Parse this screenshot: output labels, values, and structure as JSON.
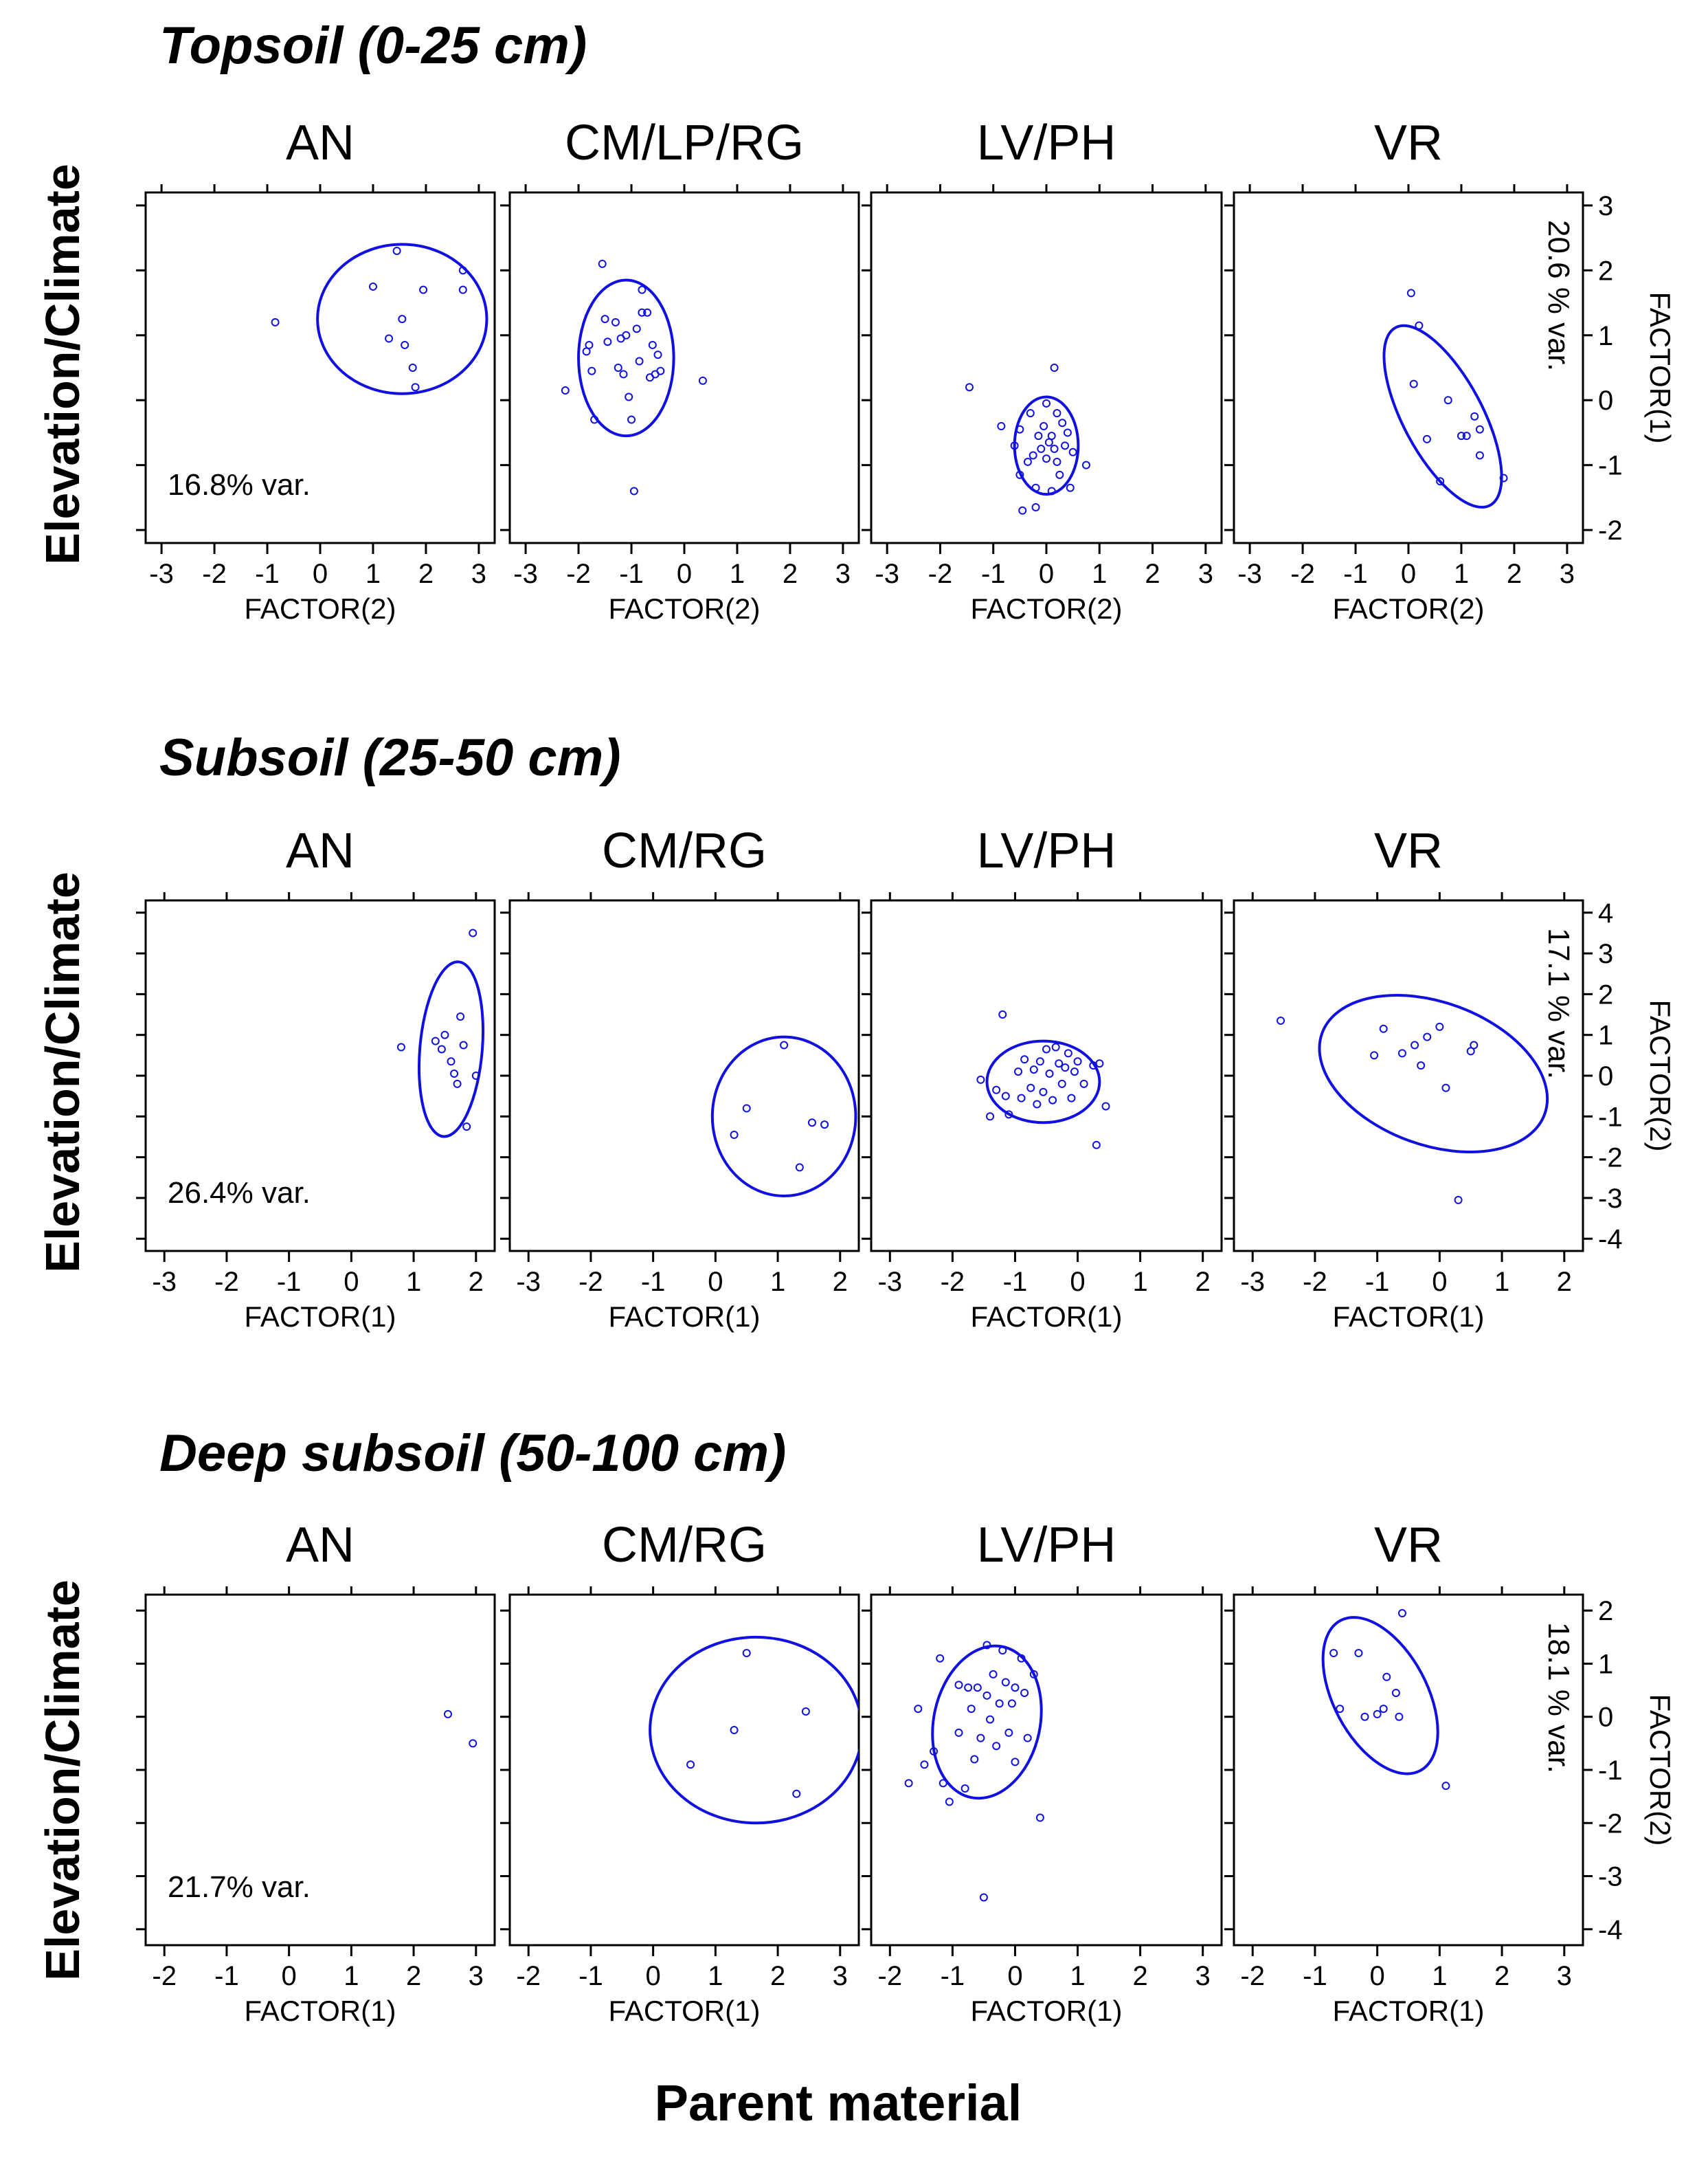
{
  "figure": {
    "xlabel": "Parent material",
    "ylabel": "Elevation/Climate"
  },
  "chart_data": [
    {
      "type": "scatter",
      "section": "Topsoil (0-25 cm)",
      "xlabel": "FACTOR(2)",
      "ylabel": "FACTOR(1)",
      "xlim": [
        -3.3,
        3.3
      ],
      "ylim": [
        -2.2,
        3.2
      ],
      "xticks": [
        -3,
        -2,
        -1,
        0,
        1,
        2,
        3
      ],
      "yticks": [
        -2,
        -1,
        0,
        1,
        2,
        3
      ],
      "var_x": "16.8% var.",
      "var_y": "20.6 % var.",
      "panels": [
        {
          "name": "AN",
          "ellipse": {
            "cx": 1.55,
            "cy": 1.25,
            "rx": 1.6,
            "ry": 1.15,
            "angle": 0
          },
          "points": [
            [
              -0.85,
              1.2
            ],
            [
              1.0,
              1.75
            ],
            [
              1.45,
              2.3
            ],
            [
              1.3,
              0.95
            ],
            [
              1.55,
              1.25
            ],
            [
              1.6,
              0.85
            ],
            [
              1.75,
              0.5
            ],
            [
              1.8,
              0.2
            ],
            [
              1.95,
              1.7
            ],
            [
              2.7,
              2.0
            ],
            [
              2.7,
              1.7
            ]
          ]
        },
        {
          "name": "CM/LP/RG",
          "ellipse": {
            "cx": -1.1,
            "cy": 0.65,
            "rx": 0.9,
            "ry": 1.2,
            "angle": 0
          },
          "points": [
            [
              -2.25,
              0.15
            ],
            [
              -1.85,
              0.75
            ],
            [
              -1.8,
              0.85
            ],
            [
              -1.75,
              0.45
            ],
            [
              -1.7,
              -0.3
            ],
            [
              -1.55,
              2.1
            ],
            [
              -1.5,
              1.25
            ],
            [
              -1.45,
              0.9
            ],
            [
              -1.3,
              1.2
            ],
            [
              -1.25,
              0.5
            ],
            [
              -1.2,
              0.95
            ],
            [
              -1.1,
              1.0
            ],
            [
              -1.05,
              0.05
            ],
            [
              -1.0,
              -0.3
            ],
            [
              -0.9,
              1.1
            ],
            [
              -0.85,
              0.6
            ],
            [
              -0.8,
              1.35
            ],
            [
              -0.7,
              1.35
            ],
            [
              -0.65,
              0.35
            ],
            [
              -0.6,
              0.85
            ],
            [
              -0.55,
              0.4
            ],
            [
              -0.5,
              0.7
            ],
            [
              -0.45,
              0.45
            ],
            [
              -0.95,
              -1.4
            ],
            [
              0.35,
              0.3
            ],
            [
              -0.8,
              1.7
            ],
            [
              -1.15,
              0.4
            ]
          ]
        },
        {
          "name": "LV/PH",
          "ellipse": {
            "cx": 0.0,
            "cy": -0.7,
            "rx": 0.6,
            "ry": 0.75,
            "angle": 0
          },
          "points": [
            [
              -1.45,
              0.2
            ],
            [
              -0.85,
              -0.4
            ],
            [
              -0.6,
              -0.7
            ],
            [
              -0.5,
              -0.45
            ],
            [
              -0.5,
              -1.15
            ],
            [
              -0.45,
              -1.7
            ],
            [
              -0.3,
              -0.2
            ],
            [
              -0.25,
              -0.85
            ],
            [
              -0.2,
              -1.35
            ],
            [
              -0.2,
              -1.65
            ],
            [
              -0.15,
              -0.55
            ],
            [
              -0.1,
              -0.75
            ],
            [
              -0.05,
              -0.4
            ],
            [
              0.0,
              -0.05
            ],
            [
              0.0,
              -0.9
            ],
            [
              0.05,
              -0.65
            ],
            [
              0.1,
              -0.55
            ],
            [
              0.1,
              -1.4
            ],
            [
              0.15,
              0.5
            ],
            [
              0.15,
              -0.75
            ],
            [
              0.2,
              -0.95
            ],
            [
              0.25,
              -1.15
            ],
            [
              0.3,
              -0.35
            ],
            [
              0.35,
              -0.7
            ],
            [
              0.4,
              -0.5
            ],
            [
              0.45,
              -1.35
            ],
            [
              0.5,
              -0.8
            ],
            [
              0.75,
              -1.0
            ],
            [
              -0.35,
              -0.95
            ],
            [
              0.2,
              -0.2
            ]
          ]
        },
        {
          "name": "VR",
          "ellipse": {
            "cx": 0.65,
            "cy": -0.25,
            "rx": 0.75,
            "ry": 1.55,
            "angle": -28
          },
          "points": [
            [
              0.05,
              1.65
            ],
            [
              0.1,
              0.25
            ],
            [
              0.2,
              1.15
            ],
            [
              0.35,
              -0.6
            ],
            [
              0.6,
              -1.25
            ],
            [
              0.75,
              0.0
            ],
            [
              1.0,
              -0.55
            ],
            [
              1.1,
              -0.55
            ],
            [
              1.25,
              -0.25
            ],
            [
              1.35,
              -0.85
            ],
            [
              1.35,
              -0.45
            ],
            [
              1.8,
              -1.2
            ]
          ]
        }
      ]
    },
    {
      "type": "scatter",
      "section": "Subsoil (25-50 cm)",
      "xlabel": "FACTOR(1)",
      "ylabel": "FACTOR(2)",
      "xlim": [
        -3.3,
        2.3
      ],
      "ylim": [
        -4.3,
        4.3
      ],
      "xticks": [
        -3,
        -2,
        -1,
        0,
        1,
        2
      ],
      "yticks": [
        -4,
        -3,
        -2,
        -1,
        0,
        1,
        2,
        3,
        4
      ],
      "var_x": "26.4% var.",
      "var_y": "17.1 % var.",
      "panels": [
        {
          "name": "AN",
          "ellipse": {
            "cx": 1.6,
            "cy": 0.65,
            "rx": 0.5,
            "ry": 2.15,
            "angle": 5
          },
          "points": [
            [
              0.8,
              0.7
            ],
            [
              1.35,
              0.85
            ],
            [
              1.45,
              0.65
            ],
            [
              1.6,
              0.35
            ],
            [
              1.65,
              0.05
            ],
            [
              1.7,
              -0.2
            ],
            [
              1.75,
              1.45
            ],
            [
              1.8,
              0.75
            ],
            [
              1.85,
              -1.25
            ],
            [
              1.95,
              3.5
            ],
            [
              2.0,
              0.0
            ],
            [
              1.5,
              1.0
            ]
          ]
        },
        {
          "name": "CM/RG",
          "ellipse": {
            "cx": 1.1,
            "cy": -1.0,
            "rx": 1.15,
            "ry": 1.95,
            "angle": 0
          },
          "points": [
            [
              0.3,
              -1.45
            ],
            [
              0.5,
              -0.8
            ],
            [
              1.1,
              0.75
            ],
            [
              1.35,
              -2.25
            ],
            [
              1.55,
              -1.15
            ],
            [
              1.75,
              -1.2
            ]
          ]
        },
        {
          "name": "LV/PH",
          "ellipse": {
            "cx": -0.55,
            "cy": -0.15,
            "rx": 0.9,
            "ry": 1.0,
            "angle": 0
          },
          "points": [
            [
              -1.55,
              -0.1
            ],
            [
              -1.4,
              -1.0
            ],
            [
              -1.3,
              -0.35
            ],
            [
              -1.2,
              1.5
            ],
            [
              -1.15,
              -0.5
            ],
            [
              -1.1,
              -0.95
            ],
            [
              -0.95,
              0.1
            ],
            [
              -0.9,
              -0.55
            ],
            [
              -0.85,
              0.4
            ],
            [
              -0.75,
              -0.3
            ],
            [
              -0.7,
              0.15
            ],
            [
              -0.65,
              -0.7
            ],
            [
              -0.6,
              0.35
            ],
            [
              -0.55,
              -0.4
            ],
            [
              -0.5,
              0.65
            ],
            [
              -0.45,
              0.05
            ],
            [
              -0.4,
              -0.6
            ],
            [
              -0.35,
              0.7
            ],
            [
              -0.3,
              0.3
            ],
            [
              -0.25,
              -0.2
            ],
            [
              -0.2,
              0.2
            ],
            [
              -0.15,
              0.55
            ],
            [
              -0.1,
              -0.55
            ],
            [
              -0.05,
              0.1
            ],
            [
              0.0,
              0.35
            ],
            [
              0.1,
              -0.2
            ],
            [
              0.25,
              0.25
            ],
            [
              0.3,
              -1.7
            ],
            [
              0.35,
              0.3
            ],
            [
              0.45,
              -0.75
            ]
          ]
        },
        {
          "name": "VR",
          "ellipse": {
            "cx": -0.1,
            "cy": 0.05,
            "rx": 1.9,
            "ry": 1.75,
            "angle": 20
          },
          "points": [
            [
              -2.55,
              1.35
            ],
            [
              -1.05,
              0.5
            ],
            [
              -0.9,
              1.15
            ],
            [
              -0.6,
              0.55
            ],
            [
              -0.4,
              0.75
            ],
            [
              -0.3,
              0.25
            ],
            [
              -0.2,
              0.95
            ],
            [
              0.0,
              1.2
            ],
            [
              0.1,
              -0.3
            ],
            [
              0.3,
              -3.05
            ],
            [
              0.5,
              0.6
            ],
            [
              0.55,
              0.75
            ]
          ]
        }
      ]
    },
    {
      "type": "scatter",
      "section": "Deep subsoil (50-100 cm)",
      "xlabel": "FACTOR(1)",
      "ylabel": "FACTOR(2)",
      "xlim": [
        -2.3,
        3.3
      ],
      "ylim": [
        -4.3,
        2.3
      ],
      "xticks": [
        -2,
        -1,
        0,
        1,
        2,
        3
      ],
      "yticks": [
        -4,
        -3,
        -2,
        -1,
        0,
        1,
        2
      ],
      "var_x": "21.7% var.",
      "var_y": "18.1 % var.",
      "panels": [
        {
          "name": "AN",
          "ellipse": null,
          "points": [
            [
              2.55,
              0.05
            ],
            [
              2.95,
              -0.5
            ]
          ]
        },
        {
          "name": "CM/RG",
          "ellipse": {
            "cx": 1.65,
            "cy": -0.25,
            "rx": 1.7,
            "ry": 1.75,
            "angle": 0
          },
          "points": [
            [
              0.6,
              -0.9
            ],
            [
              1.3,
              -0.25
            ],
            [
              1.5,
              1.2
            ],
            [
              2.3,
              -1.45
            ],
            [
              2.45,
              0.1
            ]
          ]
        },
        {
          "name": "LV/PH",
          "ellipse": {
            "cx": -0.45,
            "cy": -0.1,
            "rx": 0.85,
            "ry": 1.45,
            "angle": 12
          },
          "points": [
            [
              -1.7,
              -1.25
            ],
            [
              -1.55,
              0.15
            ],
            [
              -1.45,
              -0.9
            ],
            [
              -1.3,
              -0.65
            ],
            [
              -1.2,
              1.1
            ],
            [
              -1.15,
              -1.25
            ],
            [
              -1.05,
              -1.6
            ],
            [
              -0.9,
              -0.3
            ],
            [
              -0.8,
              -1.35
            ],
            [
              -0.75,
              0.55
            ],
            [
              -0.7,
              0.15
            ],
            [
              -0.65,
              -0.8
            ],
            [
              -0.6,
              0.55
            ],
            [
              -0.55,
              -0.4
            ],
            [
              -0.5,
              -3.4
            ],
            [
              -0.45,
              0.4
            ],
            [
              -0.45,
              1.35
            ],
            [
              -0.4,
              -0.05
            ],
            [
              -0.35,
              0.8
            ],
            [
              -0.3,
              -0.55
            ],
            [
              -0.25,
              0.25
            ],
            [
              -0.2,
              1.25
            ],
            [
              -0.15,
              0.65
            ],
            [
              -0.1,
              -0.3
            ],
            [
              -0.05,
              0.25
            ],
            [
              0.0,
              -0.85
            ],
            [
              0.1,
              1.1
            ],
            [
              0.15,
              0.45
            ],
            [
              0.2,
              -0.4
            ],
            [
              0.3,
              0.8
            ],
            [
              0.4,
              -1.9
            ],
            [
              -0.9,
              0.6
            ],
            [
              0.0,
              0.55
            ]
          ]
        },
        {
          "name": "VR",
          "ellipse": {
            "cx": 0.05,
            "cy": 0.4,
            "rx": 0.75,
            "ry": 1.6,
            "angle": -28
          },
          "points": [
            [
              -0.7,
              1.2
            ],
            [
              -0.6,
              0.15
            ],
            [
              -0.3,
              1.2
            ],
            [
              -0.2,
              0.0
            ],
            [
              0.0,
              0.05
            ],
            [
              0.1,
              0.15
            ],
            [
              0.15,
              0.75
            ],
            [
              0.3,
              0.45
            ],
            [
              0.4,
              1.95
            ],
            [
              0.35,
              0.0
            ],
            [
              1.1,
              -1.3
            ]
          ]
        }
      ]
    }
  ]
}
